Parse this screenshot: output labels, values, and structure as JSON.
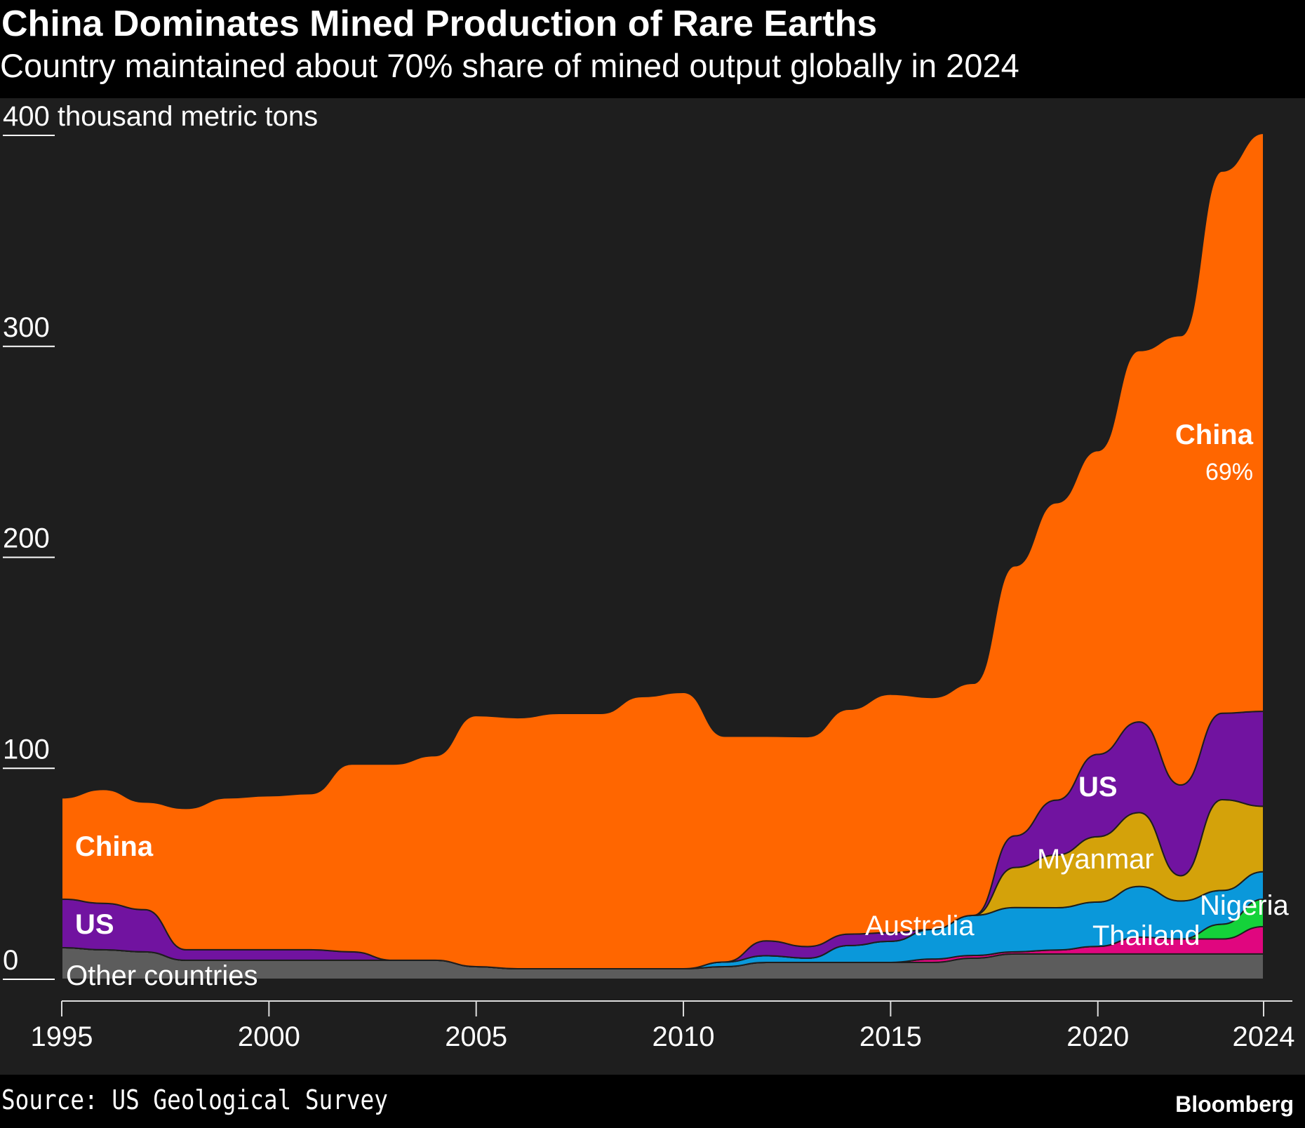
{
  "title": "China Dominates Mined Production of Rare Earths",
  "subtitle": "Country maintained about 70% share of mined output globally in 2024",
  "source": "Source: US Geological Survey",
  "brand": "Bloomberg",
  "chart_data": {
    "type": "area",
    "stacked": true,
    "title": "China Dominates Mined Production of Rare Earths",
    "ylabel": "thousand metric tons",
    "ylim": [
      0,
      400
    ],
    "yticks": [
      0,
      100,
      200,
      300,
      400
    ],
    "ytick_labels": [
      "0",
      "100",
      "200",
      "300",
      "400"
    ],
    "y_unit_label": "thousand metric tons",
    "xlim": [
      1995,
      2024
    ],
    "xticks": [
      1995,
      2000,
      2005,
      2010,
      2015,
      2020,
      2024
    ],
    "xtick_labels": [
      "1995",
      "2000",
      "2005",
      "2010",
      "2015",
      "2020",
      "2024"
    ],
    "x": [
      1995,
      1996,
      1997,
      1998,
      1999,
      2000,
      2001,
      2002,
      2003,
      2004,
      2005,
      2006,
      2007,
      2008,
      2009,
      2010,
      2011,
      2012,
      2013,
      2014,
      2015,
      2016,
      2017,
      2018,
      2019,
      2020,
      2021,
      2022,
      2023,
      2024
    ],
    "series": [
      {
        "name": "Other countries",
        "color": "#5c5c5c",
        "values": [
          15,
          14,
          13,
          9,
          9,
          9,
          9,
          9,
          9,
          9,
          6,
          5,
          5,
          5,
          5,
          5,
          6,
          8,
          8,
          8,
          8,
          8,
          10,
          12,
          12,
          12,
          12,
          12,
          12,
          12
        ]
      },
      {
        "name": "Thailand",
        "color": "#e0067f",
        "values": [
          0,
          0,
          0,
          0,
          0,
          0,
          0,
          0,
          0,
          0,
          0,
          0,
          0,
          0,
          0,
          0,
          0,
          0,
          0,
          0,
          0,
          1.6,
          1.3,
          1,
          1.9,
          3.6,
          8,
          7.1,
          7.1,
          13
        ]
      },
      {
        "name": "Nigeria",
        "color": "#14d23a",
        "values": [
          0,
          0,
          0,
          0,
          0,
          0,
          0,
          0,
          0,
          0,
          0,
          0,
          0,
          0,
          0,
          0,
          0,
          0,
          0,
          0,
          0,
          0,
          0,
          0,
          0,
          0,
          0,
          0,
          7,
          13
        ]
      },
      {
        "name": "Australia",
        "color": "#0a98da",
        "values": [
          0,
          0,
          0,
          0,
          0,
          0,
          0,
          0,
          0,
          0,
          0,
          0,
          0,
          0,
          0,
          0,
          2.2,
          3.2,
          2,
          8,
          10,
          14,
          19,
          21,
          20,
          21,
          24,
          18,
          16,
          13
        ]
      },
      {
        "name": "Myanmar",
        "color": "#d4a20a",
        "values": [
          0,
          0,
          0,
          0,
          0,
          0,
          0,
          0,
          0,
          0,
          0,
          0,
          0,
          0,
          0,
          0,
          0,
          0,
          0,
          0,
          0,
          0,
          0,
          19,
          25,
          31,
          35,
          12,
          43,
          31
        ]
      },
      {
        "name": "US",
        "color": "#7113a0",
        "values": [
          23,
          22,
          20,
          5,
          5,
          5,
          5,
          4,
          0,
          0,
          0,
          0,
          0,
          0,
          0,
          0,
          0,
          7,
          5.5,
          5.4,
          4.1,
          0,
          0,
          15,
          26,
          39,
          43,
          43,
          41,
          45
        ]
      },
      {
        "name": "China",
        "color": "#ff6600",
        "values": [
          48,
          54,
          51,
          67,
          72,
          73,
          74,
          89,
          93,
          97,
          119,
          119,
          121,
          121,
          129,
          131,
          107,
          97,
          99.5,
          106.6,
          113,
          110,
          110,
          128,
          141,
          144,
          176,
          213,
          257,
          274
        ]
      }
    ],
    "annotations": {
      "china_left": "China",
      "us_left": "US",
      "others": "Other countries",
      "australia": "Australia",
      "us_right": "US",
      "myanmar": "Myanmar",
      "thailand": "Thailand",
      "nigeria": "Nigeria",
      "china_right": "China",
      "china_share": "69%"
    },
    "grid": false,
    "legend": "none (direct labels)"
  }
}
